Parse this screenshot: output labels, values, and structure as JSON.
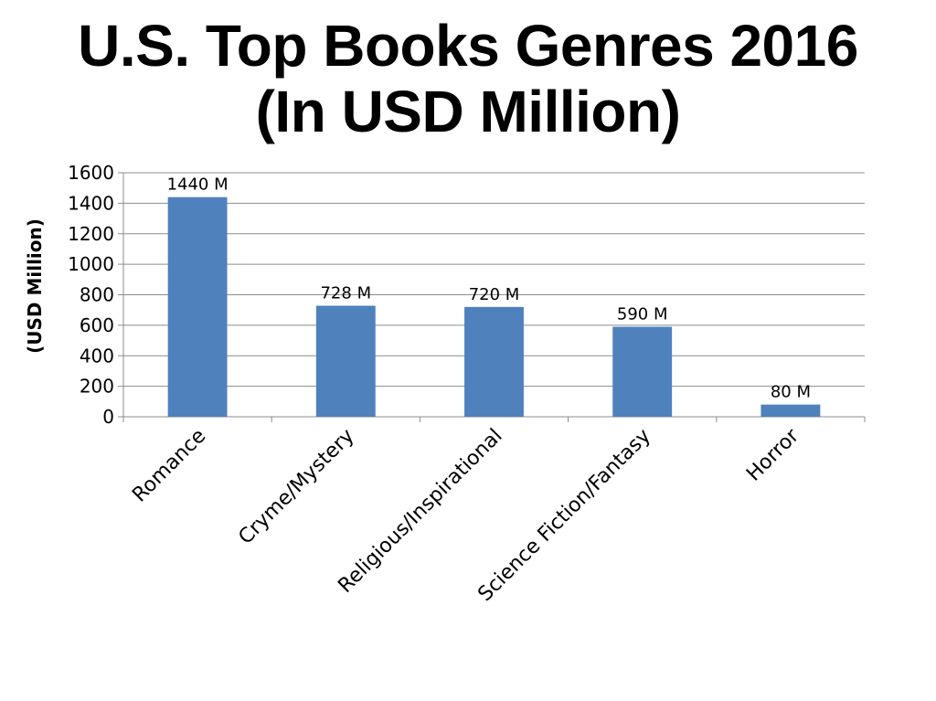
{
  "chart_data": {
    "type": "bar",
    "title_line1": "U.S. Top Books Genres 2016",
    "title_line2": "(In USD Million)",
    "ylabel": "(USD Million)",
    "xlabel": "",
    "categories": [
      "Romance",
      "Cryme/Mystery",
      "Religious/Inspirational",
      "Science Fiction/Fantasy",
      "Horror"
    ],
    "values": [
      1440,
      728,
      720,
      590,
      80
    ],
    "data_labels": [
      "1440 M",
      "728 M",
      "720 M",
      "590 M",
      "80 M"
    ],
    "ylim": [
      0,
      1600
    ],
    "yticks": [
      "0",
      "200",
      "400",
      "600",
      "800",
      "1000",
      "1200",
      "1400",
      "1600"
    ],
    "grid": true,
    "legend": "none",
    "bar_color": "#4F81BD"
  }
}
